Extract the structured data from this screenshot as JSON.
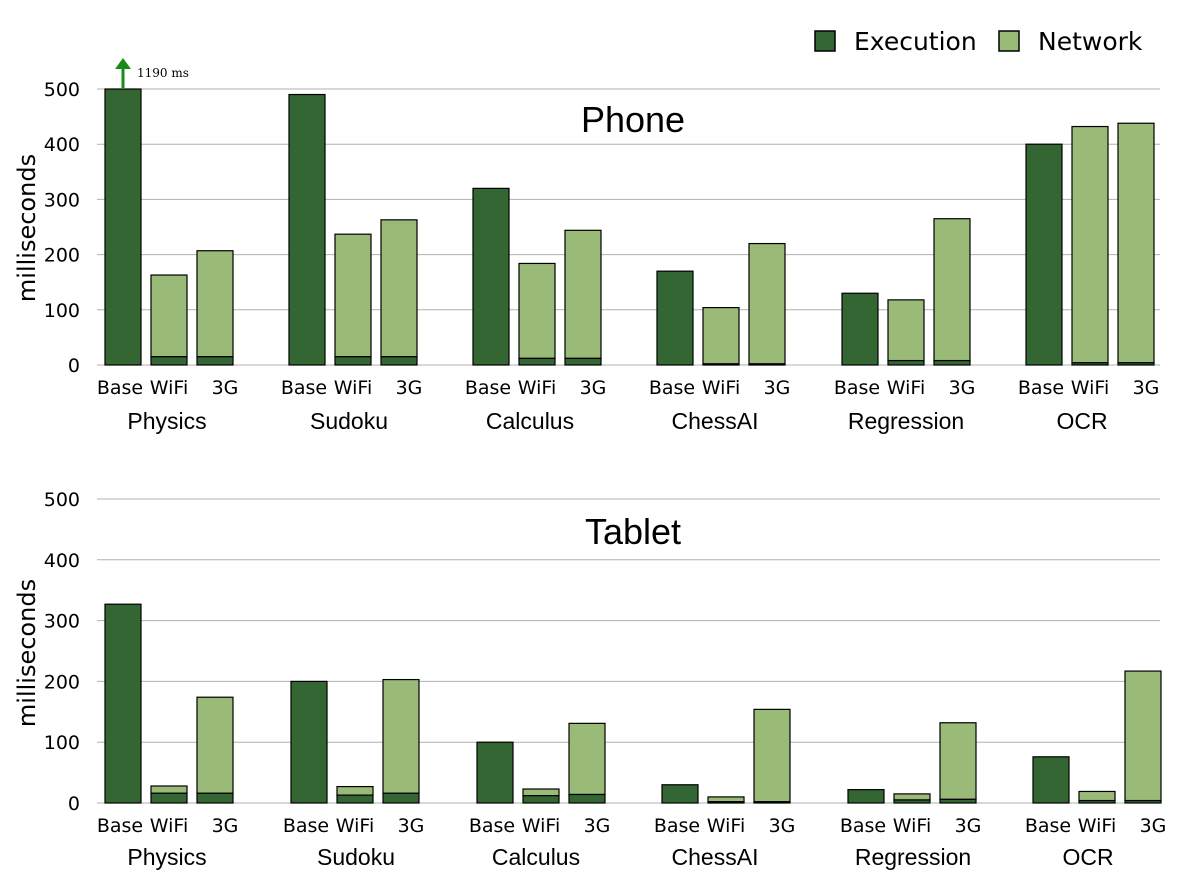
{
  "legend": [
    {
      "label": "Execution",
      "color": "#336633"
    },
    {
      "label": "Network",
      "color": "#99BB77"
    }
  ],
  "chart_data": [
    {
      "type": "bar",
      "stacked": true,
      "title": "Phone",
      "ylabel": "milliseconds",
      "ylim": [
        0,
        500
      ],
      "yticks": [
        0,
        100,
        200,
        300,
        400,
        500
      ],
      "grid": true,
      "legend_position": "top-right",
      "groups": [
        "Physics",
        "Sudoku",
        "Calculus",
        "ChessAI",
        "Regression",
        "OCR"
      ],
      "categories": [
        "Base",
        "WiFi",
        "3G"
      ],
      "annotation": {
        "text": "1190 ms",
        "group": "Physics",
        "category": "Base",
        "value": 1190
      },
      "series": [
        {
          "name": "Execution",
          "values": [
            [
              1190,
              15,
              15
            ],
            [
              490,
              15,
              15
            ],
            [
              320,
              12,
              12
            ],
            [
              170,
              2,
              2
            ],
            [
              130,
              8,
              8
            ],
            [
              400,
              4,
              4
            ]
          ]
        },
        {
          "name": "Network",
          "values": [
            [
              0,
              148,
              192
            ],
            [
              0,
              222,
              248
            ],
            [
              0,
              172,
              232
            ],
            [
              0,
              102,
              218
            ],
            [
              0,
              110,
              257
            ],
            [
              0,
              428,
              434
            ]
          ]
        }
      ]
    },
    {
      "type": "bar",
      "stacked": true,
      "title": "Tablet",
      "ylabel": "milliseconds",
      "ylim": [
        0,
        500
      ],
      "yticks": [
        0,
        100,
        200,
        300,
        400,
        500
      ],
      "grid": true,
      "groups": [
        "Physics",
        "Sudoku",
        "Calculus",
        "ChessAI",
        "Regression",
        "OCR"
      ],
      "categories": [
        "Base",
        "WiFi",
        "3G"
      ],
      "series": [
        {
          "name": "Execution",
          "values": [
            [
              327,
              16,
              16
            ],
            [
              200,
              13,
              16
            ],
            [
              100,
              12,
              14
            ],
            [
              30,
              2,
              2
            ],
            [
              22,
              5,
              6
            ],
            [
              76,
              4,
              4
            ]
          ]
        },
        {
          "name": "Network",
          "values": [
            [
              0,
              12,
              158
            ],
            [
              0,
              14,
              187
            ],
            [
              0,
              11,
              117
            ],
            [
              0,
              8,
              152
            ],
            [
              0,
              10,
              126
            ],
            [
              0,
              15,
              213
            ]
          ]
        }
      ]
    }
  ]
}
